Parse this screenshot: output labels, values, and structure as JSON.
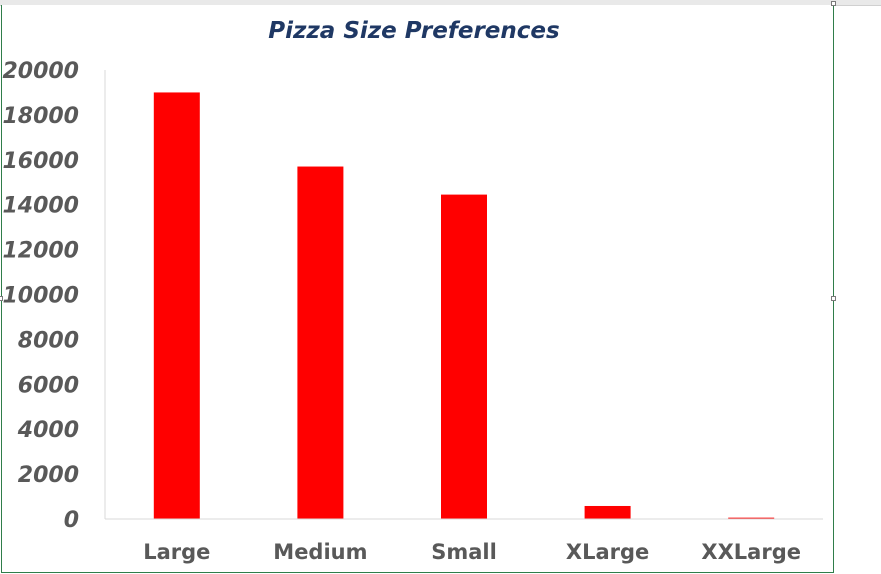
{
  "chart_data": {
    "type": "bar",
    "title": "Pizza Size Preferences",
    "xlabel": "",
    "ylabel": "",
    "categories": [
      "Large",
      "Medium",
      "Small",
      "XLarge",
      "XXLarge"
    ],
    "values": [
      19000,
      15700,
      14450,
      580,
      60
    ],
    "ylim": [
      0,
      20000
    ],
    "yticks": [
      "0",
      "2000",
      "4000",
      "6000",
      "8000",
      "10000",
      "12000",
      "14000",
      "16000",
      "18000",
      "20000"
    ],
    "bar_color": "#ff0000",
    "grid": false,
    "legend": "none"
  }
}
